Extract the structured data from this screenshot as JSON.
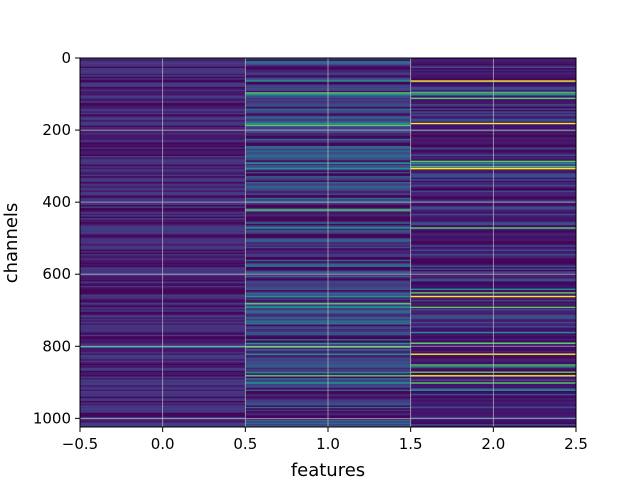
{
  "chart_data": {
    "type": "heatmap",
    "xlabel": "features",
    "ylabel": "channels",
    "xlim": [
      -0.5,
      2.5
    ],
    "ylim": [
      1024,
      0
    ],
    "y_inverted": true,
    "grid": true,
    "colormap": "viridis",
    "x_ticks": [
      "−0.5",
      "0.0",
      "0.5",
      "1.0",
      "1.5",
      "2.0",
      "2.5"
    ],
    "x_tick_values": [
      -0.5,
      0.0,
      0.5,
      1.0,
      1.5,
      2.0,
      2.5
    ],
    "y_ticks": [
      "0",
      "200",
      "400",
      "600",
      "800",
      "1000"
    ],
    "y_tick_values": [
      0,
      200,
      400,
      600,
      800,
      1000
    ],
    "columns": [
      0,
      1,
      2
    ],
    "rows": 1024,
    "bright_rows": {
      "column_1": [
        62,
        95,
        100,
        115,
        180,
        185,
        290,
        300,
        305,
        420,
        470,
        640,
        660,
        680,
        690,
        760,
        790,
        800,
        820,
        850,
        870,
        880,
        900,
        960
      ],
      "column_2": [
        62,
        95,
        100,
        110,
        180,
        285,
        290,
        300,
        305,
        470,
        640,
        650,
        660,
        690,
        760,
        790,
        820,
        850,
        855,
        870,
        880,
        900,
        920
      ],
      "column_0": [
        800
      ]
    },
    "colors": {
      "dark": "#440154",
      "low": "#472d7b",
      "mid": "#3b528b",
      "teal": "#21918c",
      "green": "#5ec962",
      "yellow": "#fde725"
    }
  }
}
